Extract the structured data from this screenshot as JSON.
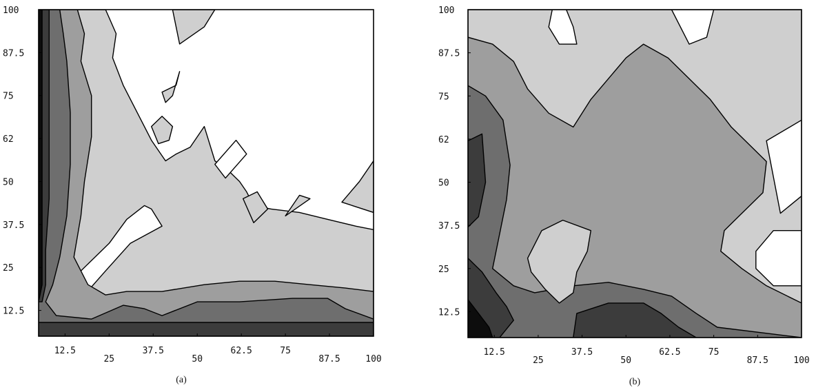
{
  "chart_data": [
    {
      "type": "heatmap",
      "subtype": "filled-contour",
      "caption": "(a)",
      "title": "",
      "xlabel": "",
      "ylabel": "",
      "xlim": [
        5,
        100
      ],
      "ylim": [
        5,
        100
      ],
      "x_tick_labels": [
        "12.5",
        "25",
        "37.5",
        "50",
        "62.5",
        "75",
        "87.5",
        "100"
      ],
      "y_tick_labels": [
        "12.5",
        "25",
        "37.5",
        "50",
        "62",
        "75",
        "87.5",
        "100"
      ],
      "shade_levels": [
        "#ffffff",
        "#cfcfcf",
        "#9e9e9e",
        "#6e6e6e",
        "#3c3c3c",
        "#0d0d0d"
      ],
      "regions": [
        {
          "level": 1,
          "points": [
            [
              5,
              100
            ],
            [
              24,
              100
            ],
            [
              27,
              93
            ],
            [
              26,
              86
            ],
            [
              29,
              78
            ],
            [
              37,
              62
            ],
            [
              41,
              56
            ],
            [
              44,
              58
            ],
            [
              48,
              60
            ],
            [
              52,
              66
            ],
            [
              55,
              56
            ],
            [
              59,
              53
            ],
            [
              62,
              50
            ],
            [
              64,
              47
            ],
            [
              66,
              43
            ],
            [
              71,
              42
            ],
            [
              79,
              41
            ],
            [
              87,
              39
            ],
            [
              95,
              37
            ],
            [
              100,
              36
            ],
            [
              100,
              5
            ],
            [
              5,
              5
            ]
          ]
        },
        {
          "level": 0,
          "points": [
            [
              8,
              10
            ],
            [
              13,
              10
            ],
            [
              18,
              17
            ],
            [
              24,
              24
            ],
            [
              31,
              32
            ],
            [
              40,
              37
            ],
            [
              37,
              42
            ],
            [
              35,
              43
            ],
            [
              30,
              39
            ],
            [
              25,
              32
            ],
            [
              19,
              26
            ],
            [
              13,
              20
            ],
            [
              10,
              15
            ]
          ]
        },
        {
          "level": 2,
          "points": [
            [
              5,
              100
            ],
            [
              16,
              100
            ],
            [
              18,
              93
            ],
            [
              17,
              85
            ],
            [
              20,
              75
            ],
            [
              20,
              63
            ],
            [
              18,
              50
            ],
            [
              17,
              40
            ],
            [
              15,
              28
            ],
            [
              19,
              20
            ],
            [
              24,
              17
            ],
            [
              30,
              18
            ],
            [
              40,
              18
            ],
            [
              52,
              20
            ],
            [
              62,
              21
            ],
            [
              72,
              21
            ],
            [
              82,
              20
            ],
            [
              92,
              19
            ],
            [
              100,
              18
            ],
            [
              100,
              5
            ],
            [
              5,
              5
            ]
          ]
        },
        {
          "level": 3,
          "points": [
            [
              5,
              100
            ],
            [
              11,
              100
            ],
            [
              12,
              93
            ],
            [
              13,
              85
            ],
            [
              14,
              70
            ],
            [
              14,
              55
            ],
            [
              13,
              40
            ],
            [
              11,
              28
            ],
            [
              9,
              20
            ],
            [
              7,
              15
            ],
            [
              10,
              11
            ],
            [
              20,
              10
            ],
            [
              29,
              14
            ],
            [
              35,
              13
            ],
            [
              40,
              11
            ],
            [
              50,
              15
            ],
            [
              62,
              15
            ],
            [
              77,
              16
            ],
            [
              87,
              16
            ],
            [
              92,
              13
            ],
            [
              100,
              10
            ],
            [
              100,
              5
            ],
            [
              5,
              5
            ]
          ]
        },
        {
          "level": 4,
          "points": [
            [
              5,
              100
            ],
            [
              8,
              100
            ],
            [
              8,
              90
            ],
            [
              8,
              75
            ],
            [
              8,
              60
            ],
            [
              8,
              45
            ],
            [
              7,
              30
            ],
            [
              7,
              20
            ],
            [
              6,
              15
            ],
            [
              5,
              15
            ]
          ]
        },
        {
          "level": 5,
          "points": [
            [
              5,
              100
            ],
            [
              6,
              100
            ],
            [
              6,
              85
            ],
            [
              6,
              65
            ],
            [
              6,
              45
            ],
            [
              6,
              20
            ],
            [
              5,
              15
            ]
          ]
        },
        {
          "level": 4,
          "points": [
            [
              5,
              9
            ],
            [
              100,
              9
            ],
            [
              100,
              5
            ],
            [
              5,
              5
            ]
          ]
        },
        {
          "level": 1,
          "points": [
            [
              43,
              100
            ],
            [
              55,
              100
            ],
            [
              52,
              95
            ],
            [
              45,
              90
            ]
          ]
        },
        {
          "level": 1,
          "points": [
            [
              40,
              76
            ],
            [
              44,
              78
            ],
            [
              45,
              82
            ],
            [
              43,
              75
            ],
            [
              41,
              73
            ]
          ]
        },
        {
          "level": 1,
          "points": [
            [
              37,
              66
            ],
            [
              40,
              69
            ],
            [
              43,
              66
            ],
            [
              42,
              62
            ],
            [
              39,
              61
            ]
          ]
        },
        {
          "level": 0,
          "points": [
            [
              55,
              55
            ],
            [
              61,
              62
            ],
            [
              64,
              58
            ],
            [
              58,
              51
            ]
          ]
        },
        {
          "level": 1,
          "points": [
            [
              63,
              45
            ],
            [
              67,
              47
            ],
            [
              70,
              42
            ],
            [
              66,
              38
            ]
          ]
        },
        {
          "level": 1,
          "points": [
            [
              75,
              40
            ],
            [
              79,
              46
            ],
            [
              82,
              45
            ]
          ]
        },
        {
          "level": 1,
          "points": [
            [
              91,
              44
            ],
            [
              96,
              50
            ],
            [
              100,
              56
            ],
            [
              100,
              41
            ],
            [
              94,
              43
            ]
          ]
        }
      ]
    },
    {
      "type": "heatmap",
      "subtype": "filled-contour",
      "caption": "(b)",
      "title": "",
      "xlabel": "",
      "ylabel": "",
      "xlim": [
        5,
        100
      ],
      "ylim": [
        5,
        100
      ],
      "x_tick_labels": [
        "12.5",
        "25",
        "37.5",
        "50",
        "62.5",
        "75",
        "87.5",
        "100"
      ],
      "y_tick_labels": [
        "12.5",
        "25",
        "37.5",
        "50",
        "62",
        "75",
        "87.5",
        "100"
      ],
      "shade_levels": [
        "#ffffff",
        "#cfcfcf",
        "#9e9e9e",
        "#6e6e6e",
        "#3c3c3c",
        "#0d0d0d"
      ],
      "regions": [
        {
          "level": 1,
          "points": [
            [
              5,
              5
            ],
            [
              100,
              5
            ],
            [
              100,
              100
            ],
            [
              5,
              100
            ]
          ]
        },
        {
          "level": 0,
          "points": [
            [
              29,
              100
            ],
            [
              33,
              100
            ],
            [
              35,
              95
            ],
            [
              36,
              90
            ],
            [
              31,
              90
            ],
            [
              28,
              95
            ]
          ]
        },
        {
          "level": 0,
          "points": [
            [
              63,
              100
            ],
            [
              75,
              100
            ],
            [
              73,
              92
            ],
            [
              68,
              90
            ]
          ]
        },
        {
          "level": 0,
          "points": [
            [
              90,
              62
            ],
            [
              100,
              68
            ],
            [
              100,
              46
            ],
            [
              94,
              41
            ]
          ]
        },
        {
          "level": 0,
          "points": [
            [
              87,
              30
            ],
            [
              92,
              36
            ],
            [
              100,
              36
            ],
            [
              100,
              20
            ],
            [
              92,
              20
            ],
            [
              87,
              25
            ]
          ]
        },
        {
          "level": 2,
          "points": [
            [
              5,
              92
            ],
            [
              12,
              90
            ],
            [
              18,
              85
            ],
            [
              22,
              77
            ],
            [
              28,
              70
            ],
            [
              35,
              66
            ],
            [
              40,
              74
            ],
            [
              50,
              86
            ],
            [
              55,
              90
            ],
            [
              62,
              86
            ],
            [
              68,
              80
            ],
            [
              74,
              74
            ],
            [
              80,
              66
            ],
            [
              86,
              60
            ],
            [
              90,
              56
            ],
            [
              89,
              47
            ],
            [
              82,
              40
            ],
            [
              78,
              36
            ],
            [
              77,
              30
            ],
            [
              83,
              25
            ],
            [
              90,
              20
            ],
            [
              100,
              15
            ],
            [
              100,
              5
            ],
            [
              5,
              5
            ]
          ]
        },
        {
          "level": 3,
          "points": [
            [
              5,
              78
            ],
            [
              10,
              75
            ],
            [
              15,
              68
            ],
            [
              17,
              55
            ],
            [
              16,
              45
            ],
            [
              14,
              35
            ],
            [
              12,
              25
            ],
            [
              18,
              20
            ],
            [
              24,
              18
            ],
            [
              35,
              20
            ],
            [
              45,
              21
            ],
            [
              55,
              19
            ],
            [
              63,
              17
            ],
            [
              70,
              12
            ],
            [
              76,
              8
            ],
            [
              100,
              5
            ],
            [
              5,
              5
            ]
          ]
        },
        {
          "level": 1,
          "points": [
            [
              22,
              28
            ],
            [
              26,
              36
            ],
            [
              32,
              39
            ],
            [
              40,
              36
            ],
            [
              39,
              30
            ],
            [
              36,
              24
            ],
            [
              35,
              18
            ],
            [
              31,
              15
            ],
            [
              27,
              19
            ],
            [
              23,
              24
            ]
          ]
        },
        {
          "level": 4,
          "points": [
            [
              5,
              62
            ],
            [
              9,
              64
            ],
            [
              10,
              50
            ],
            [
              8,
              40
            ],
            [
              5,
              37
            ]
          ]
        },
        {
          "level": 4,
          "points": [
            [
              5,
              28
            ],
            [
              9,
              24
            ],
            [
              13,
              18
            ],
            [
              16,
              14
            ],
            [
              18,
              10
            ],
            [
              14,
              5
            ],
            [
              5,
              5
            ]
          ]
        },
        {
          "level": 4,
          "points": [
            [
              36,
              12
            ],
            [
              45,
              15
            ],
            [
              55,
              15
            ],
            [
              60,
              12
            ],
            [
              65,
              8
            ],
            [
              70,
              5
            ],
            [
              35,
              5
            ]
          ]
        },
        {
          "level": 5,
          "points": [
            [
              5,
              16
            ],
            [
              8,
              12
            ],
            [
              11,
              8
            ],
            [
              12,
              5
            ],
            [
              5,
              5
            ]
          ]
        }
      ]
    }
  ]
}
